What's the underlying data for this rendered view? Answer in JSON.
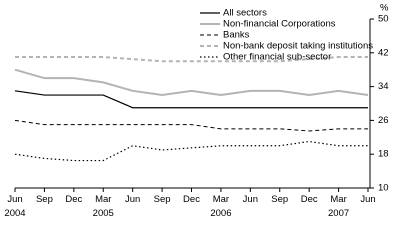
{
  "chart_data": {
    "type": "line",
    "y_unit": "%",
    "categories": [
      "Jun 2004",
      "Sep",
      "Dec",
      "Mar 2005",
      "Jun",
      "Sep",
      "Dec",
      "Mar 2006",
      "Jun",
      "Sep",
      "Dec",
      "Mar 2007",
      "Jun"
    ],
    "series": [
      {
        "name": "All sectors",
        "color": "#000000",
        "dash": "solid",
        "width": 1.2,
        "values": [
          33,
          32,
          32,
          32,
          29,
          29,
          29,
          29,
          29,
          29,
          29,
          29,
          29
        ]
      },
      {
        "name": "Non-financial Corporations",
        "color": "#b4b4b4",
        "dash": "solid",
        "width": 2,
        "values": [
          38,
          36,
          36,
          35,
          33,
          32,
          33,
          32,
          33,
          33,
          32,
          33,
          32
        ]
      },
      {
        "name": "Banks",
        "color": "#000000",
        "dash": "dashed",
        "width": 1,
        "values": [
          26,
          25,
          25,
          25,
          25,
          25,
          25,
          24,
          24,
          24,
          23.5,
          24,
          24
        ]
      },
      {
        "name": "Non-bank deposit taking institutions",
        "color": "#b4b4b4",
        "dash": "dashed",
        "width": 2,
        "values": [
          41,
          41,
          41,
          41,
          40.5,
          40,
          40,
          40,
          40,
          40,
          40.5,
          41,
          41
        ]
      },
      {
        "name": "Other financial sub-sector",
        "color": "#000000",
        "dash": "dotted",
        "width": 1.2,
        "values": [
          18,
          17,
          16.5,
          16.5,
          20,
          19,
          19.5,
          20,
          20,
          20,
          21,
          20,
          20
        ]
      }
    ],
    "ylim": [
      10,
      50
    ],
    "yticks": [
      10,
      18,
      26,
      34,
      42,
      50
    ],
    "y_axis_side": "right"
  }
}
